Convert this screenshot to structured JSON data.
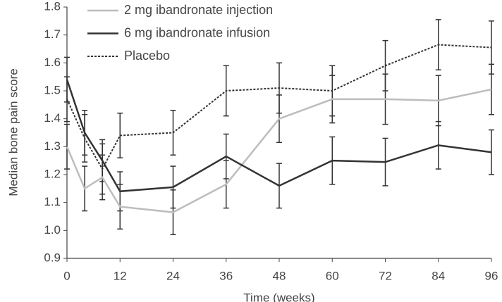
{
  "chart_data": {
    "type": "line",
    "x_label": "Time (weeks)",
    "y_label": "Median bone pain score",
    "x": [
      0,
      4,
      8,
      12,
      24,
      36,
      48,
      60,
      72,
      84,
      96
    ],
    "xlim": [
      0,
      96
    ],
    "xticks": [
      0,
      12,
      24,
      36,
      48,
      60,
      72,
      84,
      96
    ],
    "ylim": [
      0.9,
      1.8
    ],
    "yticks": [
      0.9,
      {
        "value": 1,
        "label": "1.0"
      },
      1.1,
      1.2,
      1.3,
      1.4,
      1.5,
      1.6,
      1.7,
      1.8
    ],
    "series": [
      {
        "name": "2 mg ibandronate injection",
        "color": "#bdbdbd",
        "style": "solid",
        "values": [
          1.3,
          1.15,
          1.19,
          1.085,
          1.065,
          1.165,
          1.4,
          1.47,
          1.47,
          1.465,
          1.505
        ],
        "errors": [
          0.08,
          0.08,
          0.08,
          0.08,
          0.08,
          0.085,
          0.085,
          0.085,
          0.09,
          0.09,
          0.09
        ]
      },
      {
        "name": "6 mg ibandronate infusion",
        "color": "#333333",
        "style": "solid",
        "values": [
          1.54,
          1.35,
          1.25,
          1.14,
          1.155,
          1.265,
          1.16,
          1.25,
          1.245,
          1.305,
          1.28
        ],
        "errors": [
          0.08,
          0.08,
          0.075,
          0.07,
          0.075,
          0.08,
          0.08,
          0.085,
          0.085,
          0.085,
          0.08
        ]
      },
      {
        "name": "Placebo",
        "color": "#333333",
        "style": "dotted",
        "values": [
          1.47,
          1.33,
          1.22,
          1.34,
          1.35,
          1.5,
          1.51,
          1.5,
          1.59,
          1.665,
          1.655
        ],
        "errors": [
          0.08,
          0.085,
          0.09,
          0.08,
          0.08,
          0.09,
          0.09,
          0.09,
          0.09,
          0.09,
          0.095
        ]
      }
    ]
  }
}
